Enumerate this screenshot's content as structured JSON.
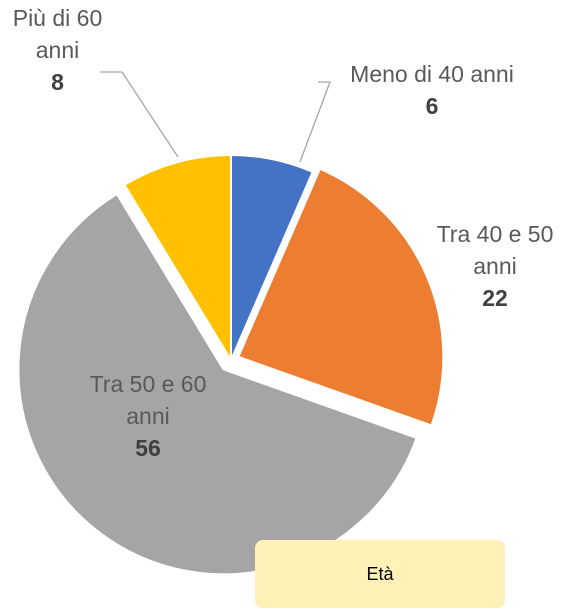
{
  "chart_data": {
    "type": "pie",
    "title": "Età",
    "categories": [
      "Meno di 40 anni",
      "Tra 40 e 50 anni",
      "Tra 50 e 60 anni",
      "Più di 60 anni"
    ],
    "values": [
      6,
      22,
      56,
      8
    ],
    "colors": [
      "#4472c4",
      "#ed7d31",
      "#a5a5a5",
      "#ffc000"
    ]
  }
}
